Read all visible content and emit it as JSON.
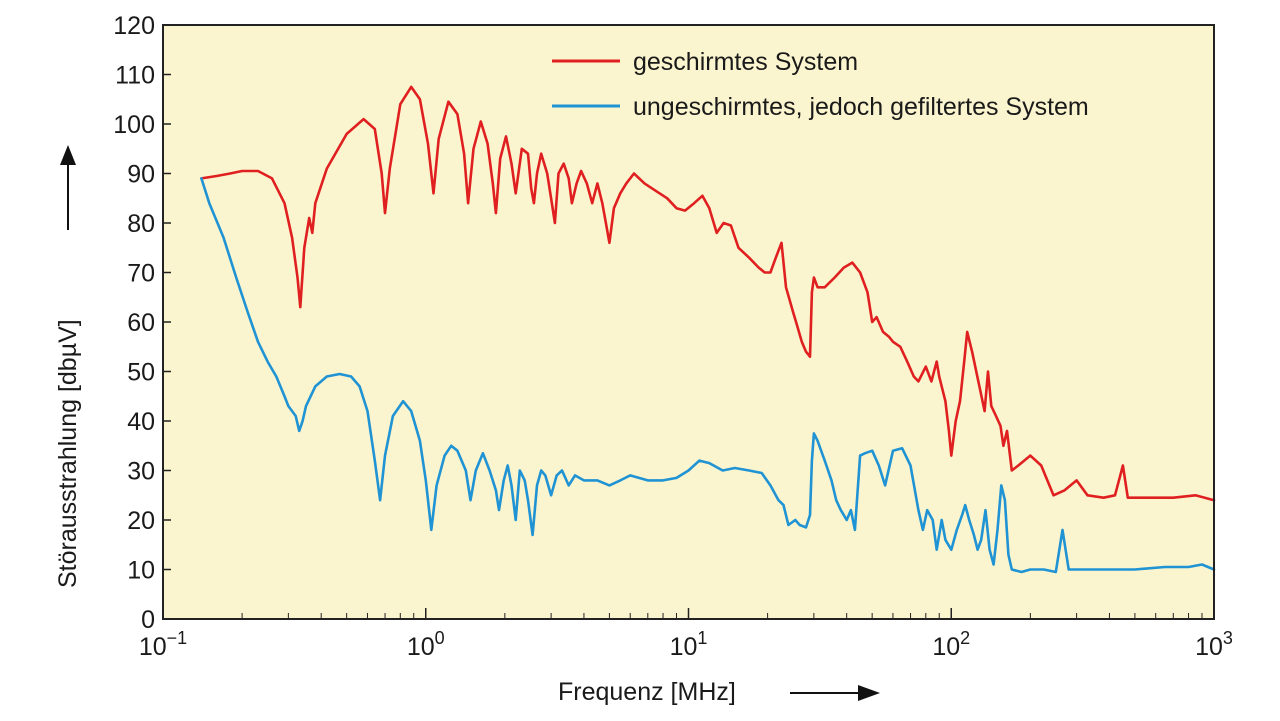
{
  "chart_data": {
    "type": "line",
    "xlabel": "Frequenz [MHz]",
    "ylabel": "Störausstrahlung [dbµV]",
    "x_scale": "log",
    "xlim": [
      0.1,
      1000
    ],
    "ylim": [
      0,
      120
    ],
    "x_ticks": [
      {
        "base": "10",
        "exp": "−1",
        "value": 0.1
      },
      {
        "base": "10",
        "exp": "0",
        "value": 1
      },
      {
        "base": "10",
        "exp": "1",
        "value": 10
      },
      {
        "base": "10",
        "exp": "2",
        "value": 100
      },
      {
        "base": "10",
        "exp": "3",
        "value": 1000
      }
    ],
    "y_ticks": [
      "0",
      "10",
      "20",
      "30",
      "40",
      "50",
      "60",
      "70",
      "80",
      "90",
      "100",
      "110",
      "120"
    ],
    "grid": false,
    "legend_position": "top-right",
    "background_color": "#fbf5cf",
    "series": [
      {
        "name": "geschirmtes System",
        "color": "#e02020",
        "points": [
          [
            0.14,
            89
          ],
          [
            0.16,
            89.5
          ],
          [
            0.18,
            90
          ],
          [
            0.2,
            90.5
          ],
          [
            0.23,
            90.5
          ],
          [
            0.26,
            89
          ],
          [
            0.29,
            84
          ],
          [
            0.31,
            77
          ],
          [
            0.325,
            69
          ],
          [
            0.333,
            63
          ],
          [
            0.345,
            75
          ],
          [
            0.36,
            81
          ],
          [
            0.37,
            78
          ],
          [
            0.38,
            84
          ],
          [
            0.42,
            91
          ],
          [
            0.5,
            98
          ],
          [
            0.58,
            101
          ],
          [
            0.64,
            99
          ],
          [
            0.68,
            90
          ],
          [
            0.7,
            82
          ],
          [
            0.73,
            91
          ],
          [
            0.8,
            104
          ],
          [
            0.88,
            107.5
          ],
          [
            0.95,
            105
          ],
          [
            1.02,
            96
          ],
          [
            1.07,
            86
          ],
          [
            1.12,
            97
          ],
          [
            1.22,
            104.5
          ],
          [
            1.32,
            102
          ],
          [
            1.4,
            94
          ],
          [
            1.45,
            84
          ],
          [
            1.52,
            95
          ],
          [
            1.62,
            100.5
          ],
          [
            1.72,
            96
          ],
          [
            1.8,
            88
          ],
          [
            1.85,
            82
          ],
          [
            1.92,
            93
          ],
          [
            2.02,
            97.5
          ],
          [
            2.12,
            92
          ],
          [
            2.2,
            86
          ],
          [
            2.32,
            95
          ],
          [
            2.45,
            94
          ],
          [
            2.52,
            87
          ],
          [
            2.58,
            84
          ],
          [
            2.65,
            90
          ],
          [
            2.75,
            94
          ],
          [
            2.9,
            90
          ],
          [
            3.0,
            85
          ],
          [
            3.1,
            80
          ],
          [
            3.2,
            90
          ],
          [
            3.35,
            92
          ],
          [
            3.5,
            89
          ],
          [
            3.6,
            84
          ],
          [
            3.75,
            88
          ],
          [
            3.9,
            90.5
          ],
          [
            4.1,
            88
          ],
          [
            4.3,
            84
          ],
          [
            4.5,
            88
          ],
          [
            4.7,
            84
          ],
          [
            4.85,
            80
          ],
          [
            5.0,
            76
          ],
          [
            5.2,
            83
          ],
          [
            5.5,
            86
          ],
          [
            5.8,
            88
          ],
          [
            6.2,
            90
          ],
          [
            6.8,
            88
          ],
          [
            7.5,
            86.5
          ],
          [
            8.3,
            85
          ],
          [
            9.0,
            83
          ],
          [
            9.7,
            82.5
          ],
          [
            10.5,
            84
          ],
          [
            11.3,
            85.5
          ],
          [
            12,
            83
          ],
          [
            12.8,
            78
          ],
          [
            13.6,
            80
          ],
          [
            14.5,
            79.5
          ],
          [
            15.5,
            75
          ],
          [
            17,
            73
          ],
          [
            18.5,
            71
          ],
          [
            19.5,
            70
          ],
          [
            20.5,
            70
          ],
          [
            21.5,
            73
          ],
          [
            22.6,
            76
          ],
          [
            23.5,
            67
          ],
          [
            25,
            62
          ],
          [
            26,
            59
          ],
          [
            27,
            56
          ],
          [
            28,
            54
          ],
          [
            29,
            53
          ],
          [
            29.5,
            66
          ],
          [
            30,
            69
          ],
          [
            31,
            67
          ],
          [
            33,
            67
          ],
          [
            36,
            69
          ],
          [
            39,
            71
          ],
          [
            42,
            72
          ],
          [
            45,
            70
          ],
          [
            48,
            66
          ],
          [
            50,
            60
          ],
          [
            52,
            61
          ],
          [
            55,
            58
          ],
          [
            58,
            57
          ],
          [
            60,
            56
          ],
          [
            64,
            55
          ],
          [
            68,
            52
          ],
          [
            72,
            49
          ],
          [
            75,
            48
          ],
          [
            80,
            51
          ],
          [
            84,
            48
          ],
          [
            88,
            52
          ],
          [
            90,
            49
          ],
          [
            95,
            44
          ],
          [
            98,
            38
          ],
          [
            100,
            33
          ],
          [
            104,
            40
          ],
          [
            108,
            44
          ],
          [
            112,
            52
          ],
          [
            115,
            58
          ],
          [
            120,
            54
          ],
          [
            128,
            47
          ],
          [
            134,
            42
          ],
          [
            138,
            50
          ],
          [
            142,
            43
          ],
          [
            148,
            41
          ],
          [
            154,
            39
          ],
          [
            158,
            35
          ],
          [
            163,
            38
          ],
          [
            170,
            30
          ],
          [
            180,
            31
          ],
          [
            200,
            33
          ],
          [
            220,
            31
          ],
          [
            245,
            25
          ],
          [
            270,
            26
          ],
          [
            300,
            28
          ],
          [
            330,
            25
          ],
          [
            380,
            24.5
          ],
          [
            420,
            25
          ],
          [
            450,
            31
          ],
          [
            470,
            24.5
          ],
          [
            550,
            24.5
          ],
          [
            700,
            24.5
          ],
          [
            850,
            25
          ],
          [
            1000,
            24
          ]
        ]
      },
      {
        "name": "ungeschirmtes, jedoch gefiltertes System",
        "color": "#1f93d3",
        "points": [
          [
            0.14,
            89
          ],
          [
            0.15,
            84
          ],
          [
            0.17,
            77
          ],
          [
            0.19,
            69
          ],
          [
            0.21,
            62
          ],
          [
            0.23,
            56
          ],
          [
            0.25,
            52
          ],
          [
            0.27,
            49
          ],
          [
            0.29,
            45
          ],
          [
            0.3,
            43
          ],
          [
            0.31,
            42
          ],
          [
            0.32,
            41
          ],
          [
            0.33,
            38
          ],
          [
            0.34,
            40
          ],
          [
            0.35,
            43
          ],
          [
            0.38,
            47
          ],
          [
            0.42,
            49
          ],
          [
            0.47,
            49.5
          ],
          [
            0.52,
            49
          ],
          [
            0.56,
            47
          ],
          [
            0.6,
            42
          ],
          [
            0.64,
            32
          ],
          [
            0.67,
            24
          ],
          [
            0.7,
            33
          ],
          [
            0.75,
            41
          ],
          [
            0.82,
            44
          ],
          [
            0.88,
            42
          ],
          [
            0.95,
            36
          ],
          [
            1.0,
            28
          ],
          [
            1.05,
            18
          ],
          [
            1.1,
            27
          ],
          [
            1.18,
            33
          ],
          [
            1.25,
            35
          ],
          [
            1.32,
            34
          ],
          [
            1.42,
            30
          ],
          [
            1.48,
            24
          ],
          [
            1.55,
            30
          ],
          [
            1.65,
            33.5
          ],
          [
            1.75,
            30
          ],
          [
            1.85,
            26
          ],
          [
            1.9,
            22
          ],
          [
            1.98,
            28
          ],
          [
            2.05,
            31
          ],
          [
            2.12,
            27
          ],
          [
            2.2,
            20
          ],
          [
            2.28,
            30
          ],
          [
            2.38,
            28
          ],
          [
            2.45,
            24
          ],
          [
            2.55,
            17
          ],
          [
            2.65,
            27
          ],
          [
            2.75,
            30
          ],
          [
            2.85,
            29
          ],
          [
            3.0,
            25
          ],
          [
            3.15,
            29
          ],
          [
            3.3,
            30
          ],
          [
            3.5,
            27
          ],
          [
            3.7,
            29
          ],
          [
            4.0,
            28
          ],
          [
            4.5,
            28
          ],
          [
            5.0,
            27
          ],
          [
            5.5,
            28
          ],
          [
            6.0,
            29
          ],
          [
            7.0,
            28
          ],
          [
            8.0,
            28
          ],
          [
            9.0,
            28.5
          ],
          [
            10.0,
            30
          ],
          [
            11.0,
            32
          ],
          [
            12.0,
            31.5
          ],
          [
            13.5,
            30
          ],
          [
            15.0,
            30.5
          ],
          [
            17.0,
            30
          ],
          [
            19.0,
            29.5
          ],
          [
            20.5,
            27
          ],
          [
            22.0,
            24
          ],
          [
            23.0,
            23
          ],
          [
            24.0,
            19
          ],
          [
            25.5,
            20
          ],
          [
            26.5,
            19
          ],
          [
            28.0,
            18.5
          ],
          [
            29.0,
            21
          ],
          [
            29.5,
            32
          ],
          [
            30,
            37.5
          ],
          [
            31,
            36
          ],
          [
            33,
            32
          ],
          [
            35,
            28
          ],
          [
            36.5,
            24
          ],
          [
            38,
            22
          ],
          [
            40,
            20
          ],
          [
            41.5,
            22
          ],
          [
            43,
            18
          ],
          [
            45,
            33
          ],
          [
            47,
            33.5
          ],
          [
            50,
            34
          ],
          [
            53,
            31
          ],
          [
            56,
            27
          ],
          [
            60,
            34
          ],
          [
            65,
            34.5
          ],
          [
            70,
            31
          ],
          [
            75,
            22
          ],
          [
            78,
            18
          ],
          [
            81,
            22
          ],
          [
            85,
            20
          ],
          [
            88,
            14
          ],
          [
            92,
            20
          ],
          [
            95,
            16
          ],
          [
            100,
            14
          ],
          [
            105,
            18
          ],
          [
            110,
            21
          ],
          [
            113,
            23
          ],
          [
            117,
            20
          ],
          [
            122,
            17
          ],
          [
            126,
            14
          ],
          [
            130,
            16
          ],
          [
            135,
            22
          ],
          [
            140,
            14
          ],
          [
            145,
            11
          ],
          [
            150,
            18
          ],
          [
            155,
            27
          ],
          [
            160,
            24
          ],
          [
            165,
            13
          ],
          [
            170,
            10
          ],
          [
            185,
            9.5
          ],
          [
            200,
            10
          ],
          [
            225,
            10
          ],
          [
            250,
            9.5
          ],
          [
            265,
            18
          ],
          [
            280,
            10
          ],
          [
            320,
            10
          ],
          [
            400,
            10
          ],
          [
            500,
            10
          ],
          [
            650,
            10.5
          ],
          [
            800,
            10.5
          ],
          [
            900,
            11
          ],
          [
            1000,
            10
          ]
        ]
      }
    ]
  }
}
